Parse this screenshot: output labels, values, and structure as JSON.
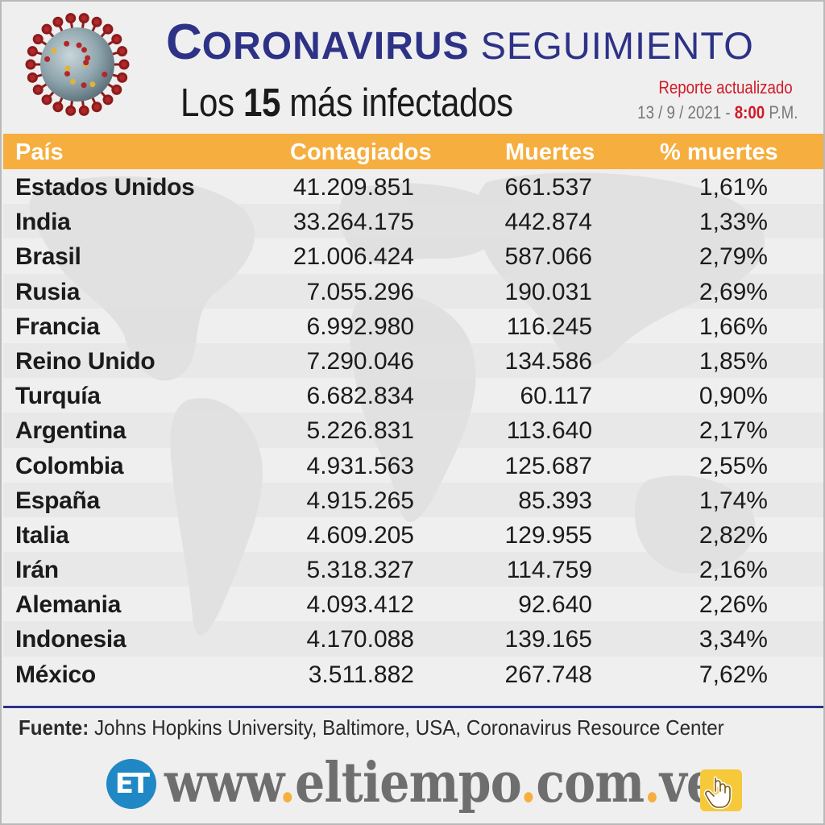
{
  "header": {
    "title_first_letter": "C",
    "title_rest": "ORONAVIRUS",
    "title_second": "SEGUIMIENTO",
    "subtitle_pre": "Los",
    "subtitle_number": "15",
    "subtitle_post": "más infectados",
    "report_label": "Reporte actualizado",
    "report_date": "13 / 9 / 2021 -",
    "report_time": "8:00",
    "report_ampm": "P.M.",
    "virus_icon": "coronavirus-icon"
  },
  "table": {
    "columns": [
      "País",
      "Contagiados",
      "Muertes",
      "% muertes"
    ],
    "rows": [
      [
        "Estados Unidos",
        "41.209.851",
        "661.537",
        "1,61%"
      ],
      [
        "India",
        "33.264.175",
        "442.874",
        "1,33%"
      ],
      [
        "Brasil",
        "21.006.424",
        "587.066",
        "2,79%"
      ],
      [
        "Rusia",
        "7.055.296",
        "190.031",
        "2,69%"
      ],
      [
        "Francia",
        "6.992.980",
        "116.245",
        "1,66%"
      ],
      [
        "Reino Unido",
        "7.290.046",
        "134.586",
        "1,85%"
      ],
      [
        "Turquía",
        "6.682.834",
        "60.117",
        "0,90%"
      ],
      [
        "Argentina",
        "5.226.831",
        "113.640",
        "2,17%"
      ],
      [
        "Colombia",
        "4.931.563",
        "125.687",
        "2,55%"
      ],
      [
        "España",
        "4.915.265",
        "85.393",
        "1,74%"
      ],
      [
        "Italia",
        "4.609.205",
        "129.955",
        "2,82%"
      ],
      [
        "Irán",
        "5.318.327",
        "114.759",
        "2,16%"
      ],
      [
        "Alemania",
        "4.093.412",
        "92.640",
        "2,26%"
      ],
      [
        "Indonesia",
        "4.170.088",
        "139.165",
        "3,34%"
      ],
      [
        "México",
        "3.511.882",
        "267.748",
        "7,62%"
      ]
    ]
  },
  "footer": {
    "source_label": "Fuente:",
    "source_text": "Johns Hopkins University, Baltimore, USA, Coronavirus Resource Center",
    "logo_text": "ET",
    "site_parts": [
      "www",
      ".",
      "eltiempo",
      ".",
      "com",
      ".",
      "ve"
    ],
    "hand_icon": "pointing-hand-icon"
  },
  "colors": {
    "navy": "#2d3287",
    "orange": "#f6ae3f",
    "red": "#d11a26",
    "logo_blue": "#1f88c5"
  }
}
